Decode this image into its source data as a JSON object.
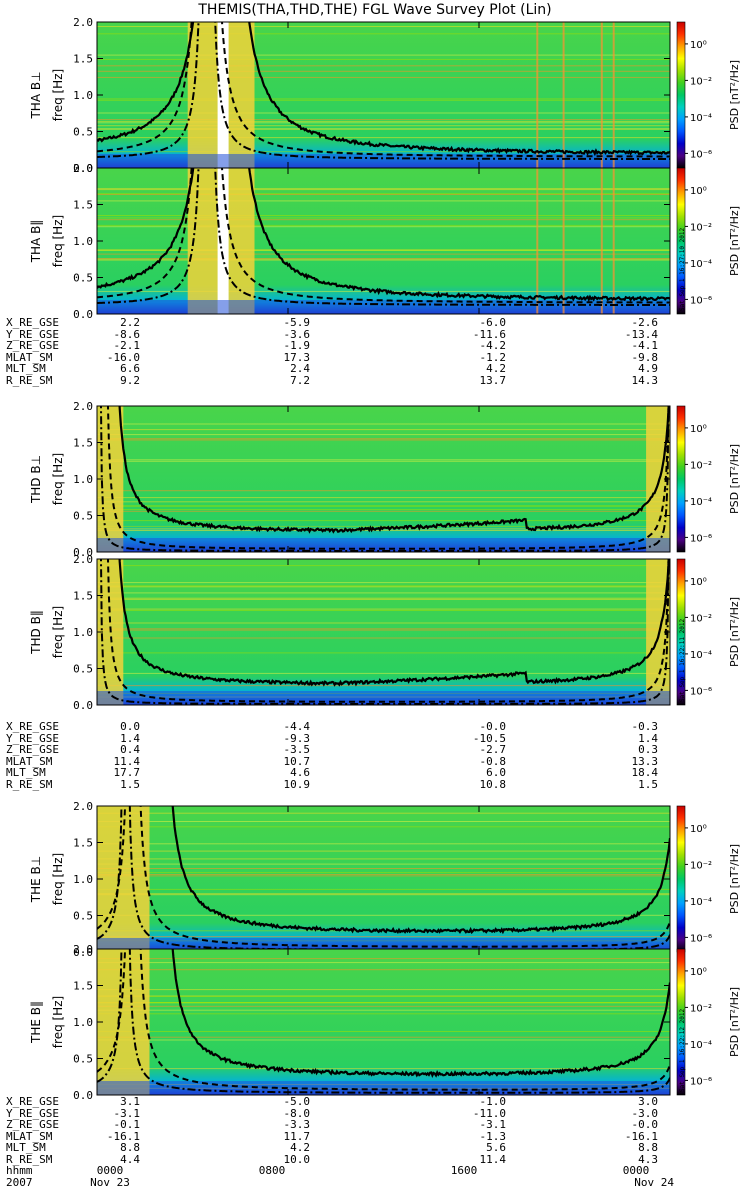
{
  "title": "THEMIS(THA,THD,THE) FGL Wave Survey Plot (Lin)",
  "colorbar": {
    "label": "PSD [nT²/Hz]",
    "ticks": [
      "10⁰",
      "10⁻²",
      "10⁻⁴",
      "10⁻⁶"
    ],
    "tick_exponents": [
      0,
      -2,
      -4,
      -6
    ],
    "colors": [
      "#000000",
      "#4b0082",
      "#0000c8",
      "#0055ff",
      "#00a0ff",
      "#00d0c0",
      "#00c864",
      "#40d020",
      "#a0e000",
      "#ffff00",
      "#ffa000",
      "#ff3000",
      "#c80000"
    ]
  },
  "chart_data": {
    "type": "heatmap",
    "x_ticks_hhmm": [
      "0000",
      "0800",
      "1600",
      "0000"
    ],
    "x_ticks_hours": [
      0,
      8,
      16,
      24
    ],
    "y_ticks": [
      "0.0",
      "0.5",
      "1.0",
      "1.5",
      "2.0"
    ],
    "ylim": [
      0,
      2.0
    ],
    "ylabel": "freq [Hz]",
    "date_label": "2007",
    "start_label": "Nov 23",
    "end_label": "Nov 24",
    "time_row_label": "hhmm",
    "panels": [
      {
        "name": "THA B⊥",
        "timestamp": ""
      },
      {
        "name": "THA B‖",
        "timestamp": "Sat Sep 1 16:27:10 2012"
      },
      {
        "name": "THD B⊥",
        "timestamp": ""
      },
      {
        "name": "THD B‖",
        "timestamp": "Sat Sep 1 16:22:11 2012"
      },
      {
        "name": "THE B⊥",
        "timestamp": ""
      },
      {
        "name": "THE B‖",
        "timestamp": "Sat Sep 1 16:22:12 2012"
      }
    ],
    "ephemeris": [
      {
        "labels": [
          "X_RE_GSE",
          "Y_RE_GSE",
          "Z_RE_GSE",
          "MLAT_SM",
          "MLT_SM",
          "R_RE_SM"
        ],
        "values": [
          [
            "2.2",
            "-5.9",
            "-6.0",
            "-2.6"
          ],
          [
            "-8.6",
            "-3.6",
            "-11.6",
            "-13.4"
          ],
          [
            "-2.1",
            "-1.9",
            "-4.2",
            "-4.1"
          ],
          [
            "-16.0",
            "17.3",
            "-1.2",
            "-9.8"
          ],
          [
            "6.6",
            "2.4",
            "4.2",
            "4.9"
          ],
          [
            "9.2",
            "7.2",
            "13.7",
            "14.3"
          ]
        ]
      },
      {
        "labels": [
          "X_RE_GSE",
          "Y_RE_GSE",
          "Z_RE_GSE",
          "MLAT_SM",
          "MLT_SM",
          "R_RE_SM"
        ],
        "values": [
          [
            "0.0",
            "-4.4",
            "-0.0",
            "-0.3"
          ],
          [
            "1.4",
            "-9.3",
            "-10.5",
            "1.4"
          ],
          [
            "0.4",
            "-3.5",
            "-2.7",
            "0.3"
          ],
          [
            "11.4",
            "10.7",
            "-0.8",
            "13.3"
          ],
          [
            "17.7",
            "4.6",
            "6.0",
            "18.4"
          ],
          [
            "1.5",
            "10.9",
            "10.8",
            "1.5"
          ]
        ]
      },
      {
        "labels": [
          "X_RE_GSE",
          "Y_RE_GSE",
          "Z_RE_GSE",
          "MLAT_SM",
          "MLT_SM",
          "R_RE_SM"
        ],
        "values": [
          [
            "3.1",
            "-5.0",
            "-1.0",
            "3.0"
          ],
          [
            "-3.1",
            "-8.0",
            "-11.0",
            "-3.0"
          ],
          [
            "-0.1",
            "-3.3",
            "-3.1",
            "-0.0"
          ],
          [
            "-16.1",
            "11.7",
            "-1.3",
            "-16.1"
          ],
          [
            "8.8",
            "4.2",
            "5.6",
            "8.8"
          ],
          [
            "4.4",
            "10.0",
            "11.4",
            "4.3"
          ]
        ]
      }
    ]
  }
}
